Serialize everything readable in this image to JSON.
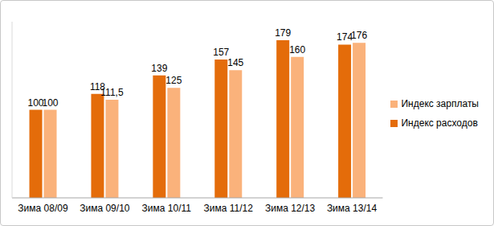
{
  "chart_data": {
    "type": "bar",
    "categories": [
      "Зима 08/09",
      "Зима 09/10",
      "Зима 10/11",
      "Зима 11/12",
      "Зима 12/13",
      "Зима 13/14"
    ],
    "series": [
      {
        "name": "Индекс расходов",
        "color": "#e46c0a",
        "values": [
          100,
          118,
          139,
          157,
          179,
          174
        ]
      },
      {
        "name": "Индекс зарплаты",
        "color": "#fab27b",
        "values": [
          100,
          111.5,
          125,
          145,
          160,
          176
        ],
        "value_labels": [
          "100",
          "111,5",
          "125",
          "145",
          "160",
          "176"
        ]
      }
    ],
    "ylim": [
      0,
      200
    ],
    "tick_labels": "x",
    "grid": false,
    "legend": "right",
    "data_labels": true
  }
}
